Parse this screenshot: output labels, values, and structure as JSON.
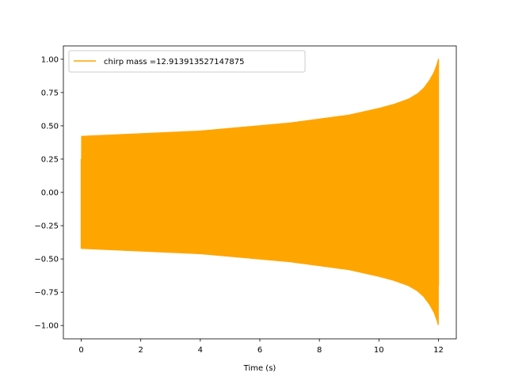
{
  "chart_data": {
    "type": "line",
    "title": "",
    "xlabel": "Time (s)",
    "ylabel": "",
    "xlim": [
      -0.6,
      12.6
    ],
    "ylim": [
      -1.1,
      1.1
    ],
    "xticks": [
      0,
      2,
      4,
      6,
      8,
      10,
      12
    ],
    "xtick_labels": [
      "0",
      "2",
      "4",
      "6",
      "8",
      "10",
      "12"
    ],
    "yticks": [
      -1.0,
      -0.75,
      -0.5,
      -0.25,
      0.0,
      0.25,
      0.5,
      0.75,
      1.0
    ],
    "ytick_labels": [
      "−1.00",
      "−0.75",
      "−0.50",
      "−0.25",
      "0.00",
      "0.25",
      "0.50",
      "0.75",
      "1.00"
    ],
    "grid": false,
    "legend_position": "upper-left",
    "series": [
      {
        "name": "chirp mass =12.913913527147875",
        "color": "#ffa500",
        "x": [
          0.0,
          1.0,
          2.0,
          3.0,
          4.0,
          5.0,
          6.0,
          7.0,
          8.0,
          9.0,
          10.0,
          10.5,
          11.0,
          11.3,
          11.5,
          11.7,
          11.85,
          11.95,
          12.0
        ],
        "envelope": [
          0.42,
          0.43,
          0.44,
          0.45,
          0.46,
          0.48,
          0.5,
          0.52,
          0.55,
          0.58,
          0.63,
          0.66,
          0.7,
          0.74,
          0.78,
          0.84,
          0.9,
          0.96,
          1.0
        ],
        "initial_value": 0.25
      }
    ]
  }
}
